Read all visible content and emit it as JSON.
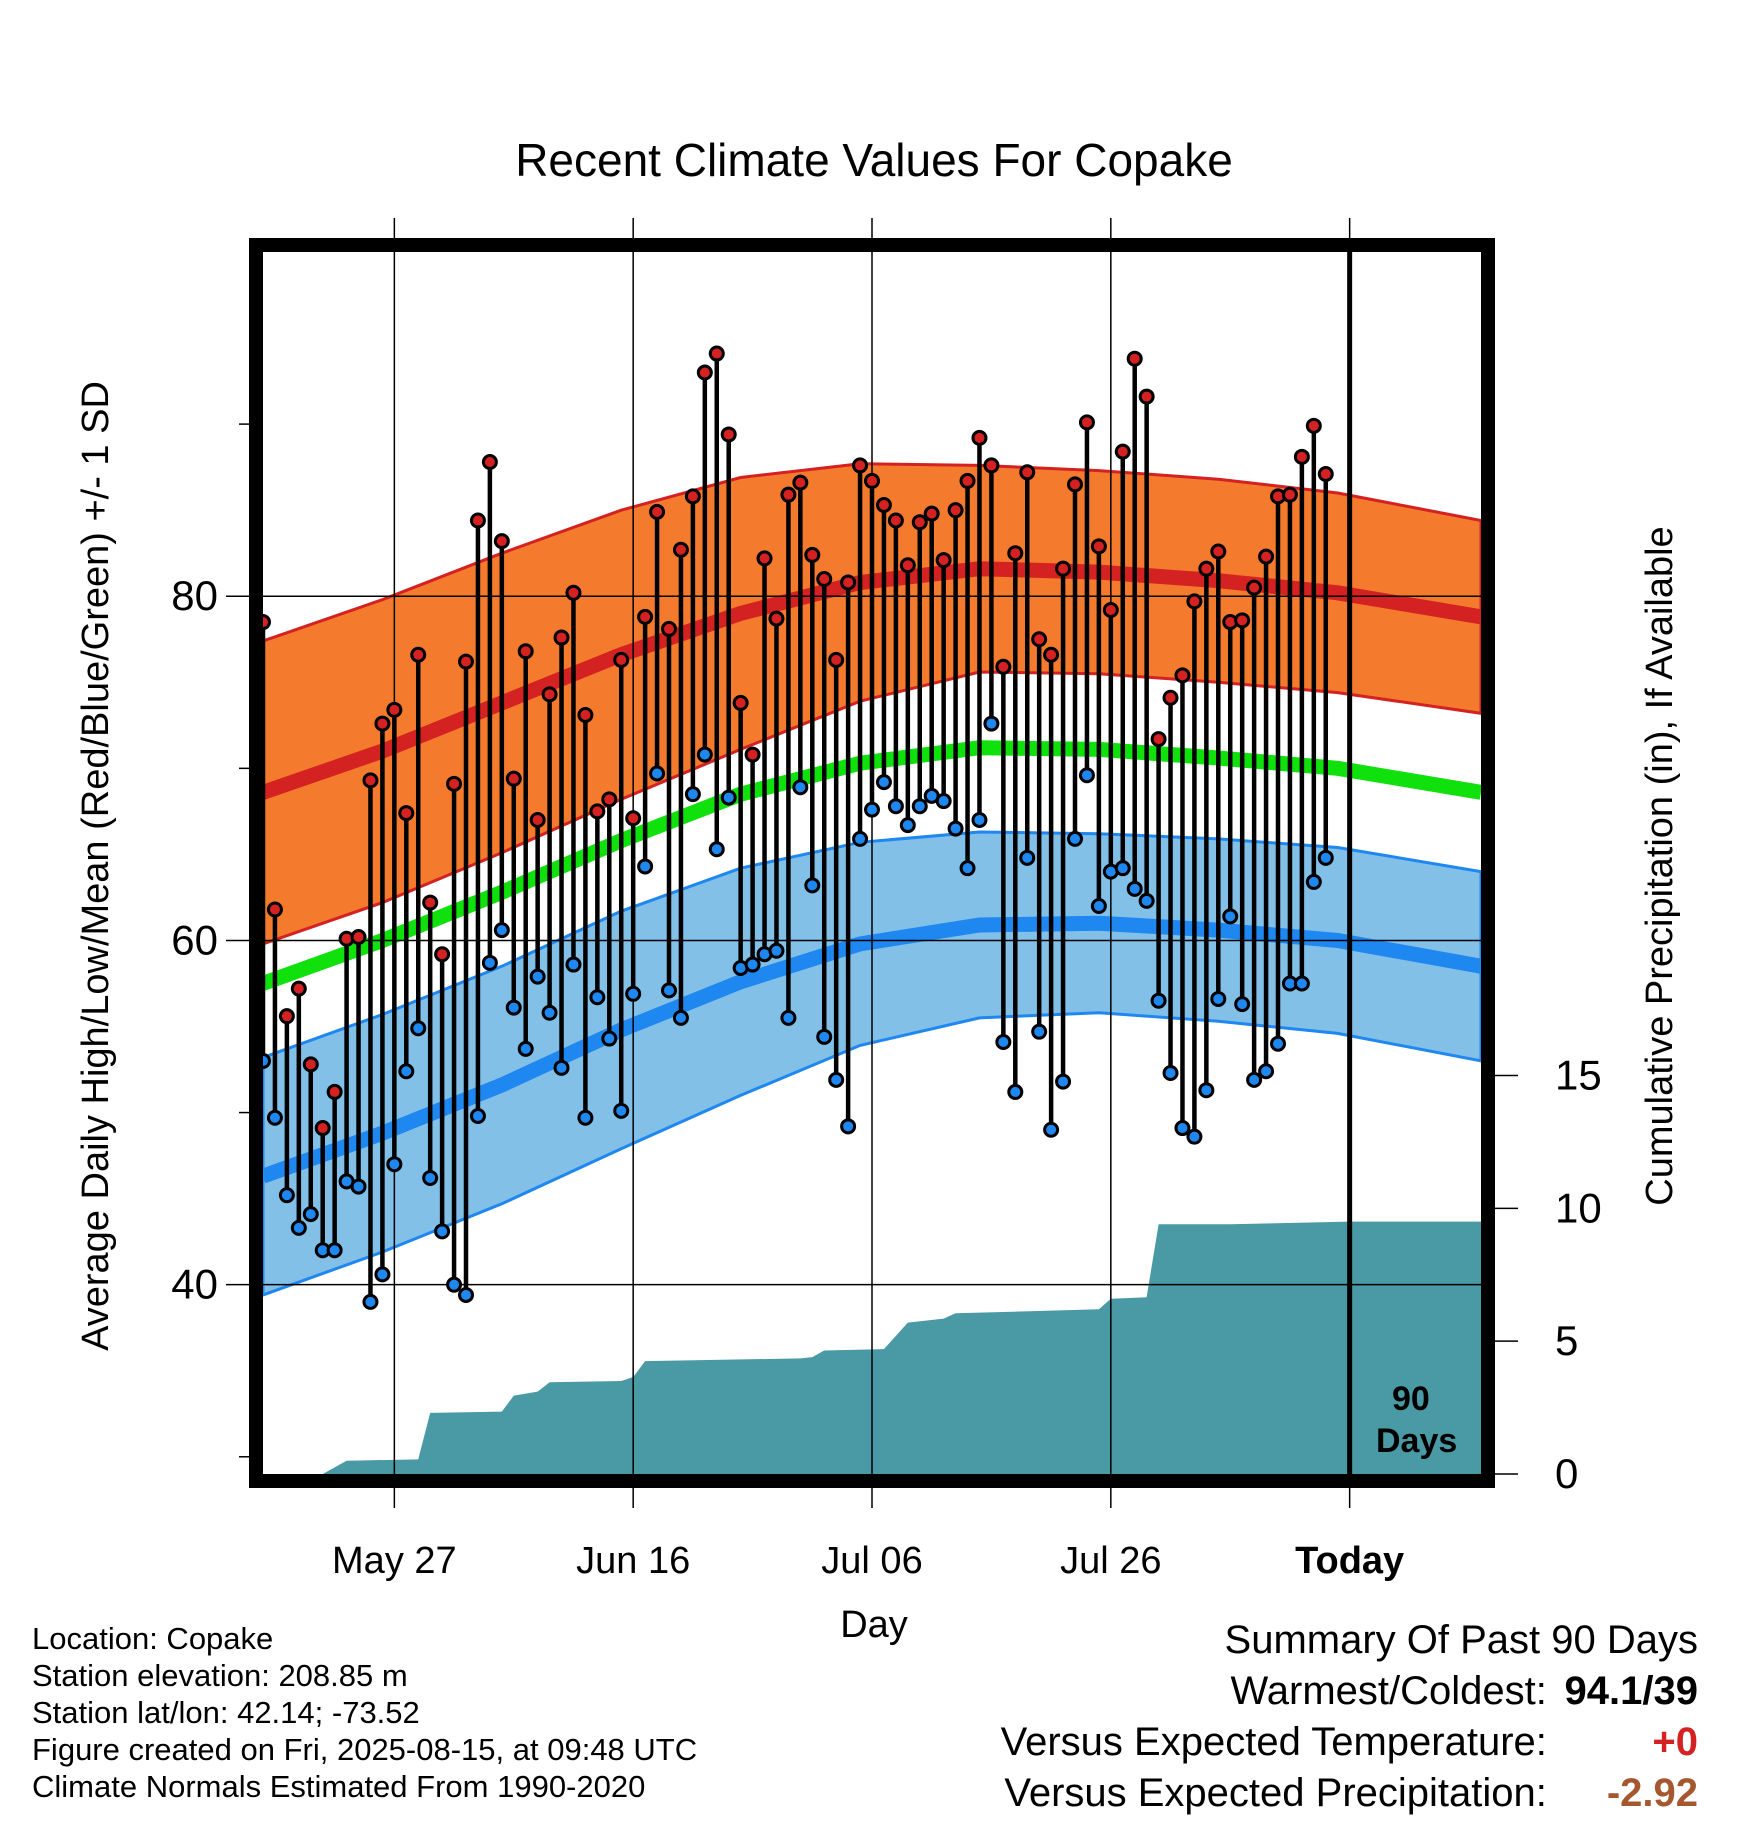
{
  "title": "Recent Climate Values For Copake",
  "colors": {
    "high_band": "#f47a2e",
    "high_line": "#d42121",
    "mean_line": "#10e00c",
    "low_band": "#82c0e8",
    "low_line": "#1f87f0",
    "precip_fill": "#4a9aa5",
    "frame": "#000000"
  },
  "chart_data": {
    "type": "line",
    "title": "Recent Climate Values For Copake",
    "xlabel": "Day",
    "ylabel": "Average Daily High/Low/Mean (Red/Blue/Green) +/- 1 SD",
    "ylabel_right": "Cumulative Precipitation (in), If Available",
    "x_start": "2025-05-16",
    "x_end": "2025-08-26",
    "today": "2025-08-15",
    "today_label": "90 Days",
    "ylim": [
      29,
      100
    ],
    "ylim_right": [
      0,
      46
    ],
    "x_ticks": [
      {
        "date": "2025-05-27",
        "label": "May 27"
      },
      {
        "date": "2025-06-16",
        "label": "Jun 16"
      },
      {
        "date": "2025-07-06",
        "label": "Jul 06"
      },
      {
        "date": "2025-07-26",
        "label": "Jul 26"
      },
      {
        "date": "2025-08-15",
        "label": "Today"
      }
    ],
    "y_ticks_left": [
      40,
      60,
      80
    ],
    "y_minor_left": [
      30,
      50,
      70,
      90
    ],
    "y_ticks_right": [
      0,
      5,
      10,
      15
    ],
    "grid": true,
    "observed": [
      {
        "date": "2025-05-16",
        "high": 78.5,
        "low": 53.0
      },
      {
        "date": "2025-05-17",
        "high": 61.8,
        "low": 49.7
      },
      {
        "date": "2025-05-18",
        "high": 55.6,
        "low": 45.2
      },
      {
        "date": "2025-05-19",
        "high": 57.2,
        "low": 43.3
      },
      {
        "date": "2025-05-20",
        "high": 52.8,
        "low": 44.1
      },
      {
        "date": "2025-05-21",
        "high": 49.1,
        "low": 42.0
      },
      {
        "date": "2025-05-22",
        "high": 51.2,
        "low": 42.0
      },
      {
        "date": "2025-05-23",
        "high": 60.1,
        "low": 46.0
      },
      {
        "date": "2025-05-24",
        "high": 60.2,
        "low": 45.7
      },
      {
        "date": "2025-05-25",
        "high": 69.3,
        "low": 39.0
      },
      {
        "date": "2025-05-26",
        "high": 72.6,
        "low": 40.6
      },
      {
        "date": "2025-05-27",
        "high": 73.4,
        "low": 47.0
      },
      {
        "date": "2025-05-28",
        "high": 67.4,
        "low": 52.4
      },
      {
        "date": "2025-05-29",
        "high": 76.6,
        "low": 54.9
      },
      {
        "date": "2025-05-30",
        "high": 62.2,
        "low": 46.2
      },
      {
        "date": "2025-05-31",
        "high": 59.2,
        "low": 43.1
      },
      {
        "date": "2025-06-01",
        "high": 69.1,
        "low": 40.0
      },
      {
        "date": "2025-06-02",
        "high": 76.2,
        "low": 39.4
      },
      {
        "date": "2025-06-03",
        "high": 84.4,
        "low": 49.8
      },
      {
        "date": "2025-06-04",
        "high": 87.8,
        "low": 58.7
      },
      {
        "date": "2025-06-05",
        "high": 83.2,
        "low": 60.6
      },
      {
        "date": "2025-06-06",
        "high": 69.4,
        "low": 56.1
      },
      {
        "date": "2025-06-07",
        "high": 76.8,
        "low": 53.7
      },
      {
        "date": "2025-06-08",
        "high": 67.0,
        "low": 57.9
      },
      {
        "date": "2025-06-09",
        "high": 74.3,
        "low": 55.8
      },
      {
        "date": "2025-06-10",
        "high": 77.6,
        "low": 52.6
      },
      {
        "date": "2025-06-11",
        "high": 80.2,
        "low": 58.6
      },
      {
        "date": "2025-06-12",
        "high": 73.1,
        "low": 49.7
      },
      {
        "date": "2025-06-13",
        "high": 67.5,
        "low": 56.7
      },
      {
        "date": "2025-06-14",
        "high": 68.2,
        "low": 54.3
      },
      {
        "date": "2025-06-15",
        "high": 76.3,
        "low": 50.1
      },
      {
        "date": "2025-06-16",
        "high": 67.1,
        "low": 56.9
      },
      {
        "date": "2025-06-17",
        "high": 78.8,
        "low": 64.3
      },
      {
        "date": "2025-06-18",
        "high": 84.9,
        "low": 69.7
      },
      {
        "date": "2025-06-19",
        "high": 78.1,
        "low": 57.1
      },
      {
        "date": "2025-06-20",
        "high": 82.7,
        "low": 55.5
      },
      {
        "date": "2025-06-21",
        "high": 85.8,
        "low": 68.5
      },
      {
        "date": "2025-06-22",
        "high": 93.0,
        "low": 70.8
      },
      {
        "date": "2025-06-23",
        "high": 94.1,
        "low": 65.3
      },
      {
        "date": "2025-06-24",
        "high": 89.4,
        "low": 68.3
      },
      {
        "date": "2025-06-25",
        "high": 73.8,
        "low": 58.4
      },
      {
        "date": "2025-06-26",
        "high": 70.8,
        "low": 58.6
      },
      {
        "date": "2025-06-27",
        "high": 82.2,
        "low": 59.2
      },
      {
        "date": "2025-06-28",
        "high": 78.7,
        "low": 59.4
      },
      {
        "date": "2025-06-29",
        "high": 85.9,
        "low": 55.5
      },
      {
        "date": "2025-06-30",
        "high": 86.6,
        "low": 68.9
      },
      {
        "date": "2025-07-01",
        "high": 82.4,
        "low": 63.2
      },
      {
        "date": "2025-07-02",
        "high": 81.0,
        "low": 54.4
      },
      {
        "date": "2025-07-03",
        "high": 76.3,
        "low": 51.9
      },
      {
        "date": "2025-07-04",
        "high": 80.8,
        "low": 49.2
      },
      {
        "date": "2025-07-05",
        "high": 87.6,
        "low": 65.9
      },
      {
        "date": "2025-07-06",
        "high": 86.7,
        "low": 67.6
      },
      {
        "date": "2025-07-07",
        "high": 85.3,
        "low": 69.2
      },
      {
        "date": "2025-07-08",
        "high": 84.4,
        "low": 67.8
      },
      {
        "date": "2025-07-09",
        "high": 81.8,
        "low": 66.7
      },
      {
        "date": "2025-07-10",
        "high": 84.3,
        "low": 67.8
      },
      {
        "date": "2025-07-11",
        "high": 84.8,
        "low": 68.4
      },
      {
        "date": "2025-07-12",
        "high": 82.1,
        "low": 68.1
      },
      {
        "date": "2025-07-13",
        "high": 85.0,
        "low": 66.5
      },
      {
        "date": "2025-07-14",
        "high": 86.7,
        "low": 64.2
      },
      {
        "date": "2025-07-15",
        "high": 89.2,
        "low": 67.0
      },
      {
        "date": "2025-07-16",
        "high": 87.6,
        "low": 72.6
      },
      {
        "date": "2025-07-17",
        "high": 75.9,
        "low": 54.1
      },
      {
        "date": "2025-07-18",
        "high": 82.5,
        "low": 51.2
      },
      {
        "date": "2025-07-19",
        "high": 87.2,
        "low": 64.8
      },
      {
        "date": "2025-07-20",
        "high": 77.5,
        "low": 54.7
      },
      {
        "date": "2025-07-21",
        "high": 76.6,
        "low": 49.0
      },
      {
        "date": "2025-07-22",
        "high": 81.6,
        "low": 51.8
      },
      {
        "date": "2025-07-23",
        "high": 86.5,
        "low": 65.9
      },
      {
        "date": "2025-07-24",
        "high": 90.1,
        "low": 69.6
      },
      {
        "date": "2025-07-25",
        "high": 82.9,
        "low": 62.0
      },
      {
        "date": "2025-07-26",
        "high": 79.2,
        "low": 64.0
      },
      {
        "date": "2025-07-27",
        "high": 88.4,
        "low": 64.2
      },
      {
        "date": "2025-07-28",
        "high": 93.8,
        "low": 63.0
      },
      {
        "date": "2025-07-29",
        "high": 91.6,
        "low": 62.3
      },
      {
        "date": "2025-07-30",
        "high": 71.7,
        "low": 56.5
      },
      {
        "date": "2025-07-31",
        "high": 74.1,
        "low": 52.3
      },
      {
        "date": "2025-08-01",
        "high": 75.4,
        "low": 49.1
      },
      {
        "date": "2025-08-02",
        "high": 79.7,
        "low": 48.6
      },
      {
        "date": "2025-08-03",
        "high": 81.6,
        "low": 51.3
      },
      {
        "date": "2025-08-04",
        "high": 82.6,
        "low": 56.6
      },
      {
        "date": "2025-08-05",
        "high": 78.5,
        "low": 61.4
      },
      {
        "date": "2025-08-06",
        "high": 78.6,
        "low": 56.3
      },
      {
        "date": "2025-08-07",
        "high": 80.5,
        "low": 51.9
      },
      {
        "date": "2025-08-08",
        "high": 82.3,
        "low": 52.4
      },
      {
        "date": "2025-08-09",
        "high": 85.8,
        "low": 54.0
      },
      {
        "date": "2025-08-10",
        "high": 85.9,
        "low": 57.5
      },
      {
        "date": "2025-08-11",
        "high": 88.1,
        "low": 57.5
      },
      {
        "date": "2025-08-12",
        "high": 89.9,
        "low": 63.4
      },
      {
        "date": "2025-08-13",
        "high": 87.1,
        "low": 64.8
      }
    ],
    "normals": [
      {
        "date": "2025-05-16",
        "high_mean": 68.6,
        "high_sd": 8.8,
        "mean": 57.5,
        "low_mean": 46.3,
        "low_sd": 6.9
      },
      {
        "date": "2025-05-26",
        "high_mean": 71.0,
        "high_sd": 8.8,
        "mean": 60.0,
        "low_mean": 48.8,
        "low_sd": 6.9
      },
      {
        "date": "2025-06-05",
        "high_mean": 73.8,
        "high_sd": 8.7,
        "mean": 62.8,
        "low_mean": 51.6,
        "low_sd": 6.9
      },
      {
        "date": "2025-06-15",
        "high_mean": 76.6,
        "high_sd": 8.4,
        "mean": 65.8,
        "low_mean": 54.8,
        "low_sd": 6.9
      },
      {
        "date": "2025-06-25",
        "high_mean": 79.0,
        "high_sd": 7.9,
        "mean": 68.5,
        "low_mean": 57.6,
        "low_sd": 6.6
      },
      {
        "date": "2025-07-05",
        "high_mean": 80.8,
        "high_sd": 6.9,
        "mean": 70.3,
        "low_mean": 59.8,
        "low_sd": 5.9
      },
      {
        "date": "2025-07-15",
        "high_mean": 81.6,
        "high_sd": 6.0,
        "mean": 71.2,
        "low_mean": 60.9,
        "low_sd": 5.4
      },
      {
        "date": "2025-07-25",
        "high_mean": 81.4,
        "high_sd": 5.9,
        "mean": 71.1,
        "low_mean": 61.0,
        "low_sd": 5.2
      },
      {
        "date": "2025-08-04",
        "high_mean": 80.9,
        "high_sd": 5.9,
        "mean": 70.6,
        "low_mean": 60.6,
        "low_sd": 5.3
      },
      {
        "date": "2025-08-14",
        "high_mean": 80.2,
        "high_sd": 5.8,
        "mean": 70.0,
        "low_mean": 60.0,
        "low_sd": 5.4
      },
      {
        "date": "2025-08-26",
        "high_mean": 78.8,
        "high_sd": 5.6,
        "mean": 68.6,
        "low_mean": 58.5,
        "low_sd": 5.5
      }
    ],
    "precip_cumulative": [
      {
        "date": "2025-05-16",
        "value": 0.0
      },
      {
        "date": "2025-05-21",
        "value": 0.0
      },
      {
        "date": "2025-05-23",
        "value": 0.5
      },
      {
        "date": "2025-05-29",
        "value": 0.55
      },
      {
        "date": "2025-05-30",
        "value": 2.3
      },
      {
        "date": "2025-06-05",
        "value": 2.35
      },
      {
        "date": "2025-06-06",
        "value": 2.95
      },
      {
        "date": "2025-06-08",
        "value": 3.1
      },
      {
        "date": "2025-06-09",
        "value": 3.45
      },
      {
        "date": "2025-06-15",
        "value": 3.5
      },
      {
        "date": "2025-06-16",
        "value": 3.65
      },
      {
        "date": "2025-06-17",
        "value": 4.25
      },
      {
        "date": "2025-06-30",
        "value": 4.35
      },
      {
        "date": "2025-07-01",
        "value": 4.4
      },
      {
        "date": "2025-07-02",
        "value": 4.65
      },
      {
        "date": "2025-07-07",
        "value": 4.7
      },
      {
        "date": "2025-07-08",
        "value": 5.2
      },
      {
        "date": "2025-07-09",
        "value": 5.7
      },
      {
        "date": "2025-07-12",
        "value": 5.85
      },
      {
        "date": "2025-07-13",
        "value": 6.05
      },
      {
        "date": "2025-07-25",
        "value": 6.2
      },
      {
        "date": "2025-07-26",
        "value": 6.6
      },
      {
        "date": "2025-07-29",
        "value": 6.65
      },
      {
        "date": "2025-07-30",
        "value": 9.4
      },
      {
        "date": "2025-08-05",
        "value": 9.4
      },
      {
        "date": "2025-08-15",
        "value": 9.5
      },
      {
        "date": "2025-08-26",
        "value": 9.5
      }
    ]
  },
  "location_info": {
    "location": "Location: Copake",
    "elevation": "Station elevation: 208.85 m",
    "latlon": "Station lat/lon: 42.14; -73.52",
    "created": "Figure created on Fri, 2025-08-15, at 09:48 UTC",
    "normals": "Climate Normals Estimated From 1990-2020"
  },
  "summary": {
    "heading": "Summary Of Past 90 Days",
    "warmest_label": "Warmest/Coldest:",
    "warmest_value": "94.1/39",
    "temp_label": "Versus Expected Temperature:",
    "temp_value": "+0",
    "precip_label": "Versus Expected Precipitation:",
    "precip_value": "-2.92"
  }
}
